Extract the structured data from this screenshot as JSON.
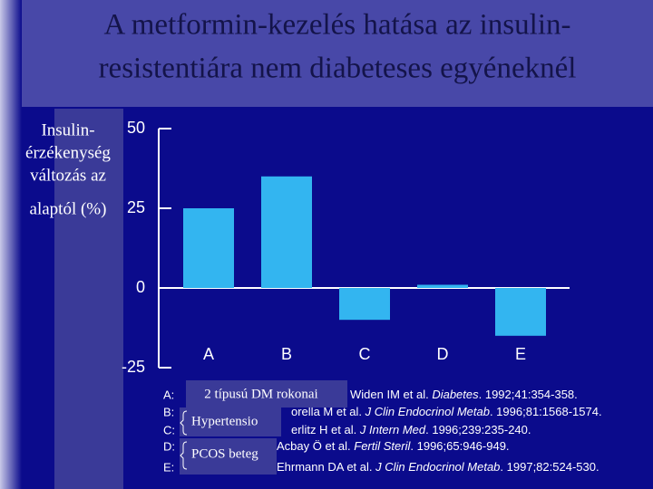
{
  "chart_data": {
    "type": "bar",
    "title": [
      "A metformin-kezelés hatása az insulin-",
      "resistentiára nem diabeteses egyéneknél"
    ],
    "y_label": [
      "Insulin-",
      "érzékenység",
      "változás az",
      "alaptól (%)"
    ],
    "categories": [
      "A",
      "B",
      "C",
      "D",
      "E"
    ],
    "values": [
      25,
      35,
      -10,
      1,
      -15
    ],
    "color": "#33b5f0",
    "ylim": [
      -25,
      50
    ],
    "yticks": [
      50,
      25,
      0,
      -25
    ],
    "references": [
      {
        "key": "A:",
        "authors": "Widen IM et al. ",
        "journal": "Diabetes",
        "citation": ". 1992;41:354-358."
      },
      {
        "key": "B:",
        "authors": "orella M et al. ",
        "journal": "J Clin Endocrinol Metab",
        "citation": ". 1996;81:1568-1574."
      },
      {
        "key": "C:",
        "authors": "erlitz H et al. ",
        "journal": "J Intern Med",
        "citation": ". 1996;239:235-240."
      },
      {
        "key": "D:",
        "authors": "Acbay Ö et al. ",
        "journal": "Fertil Steril",
        "citation": ". 1996;65:946-949."
      },
      {
        "key": "E:",
        "authors": "Ehrmann DA et al. ",
        "journal": "J Clin Endocrinol Metab",
        "citation": ". 1997;82:524-530."
      }
    ],
    "groups": [
      "2 típusú DM rokonai",
      "Hypertensio",
      "PCOS beteg"
    ]
  }
}
